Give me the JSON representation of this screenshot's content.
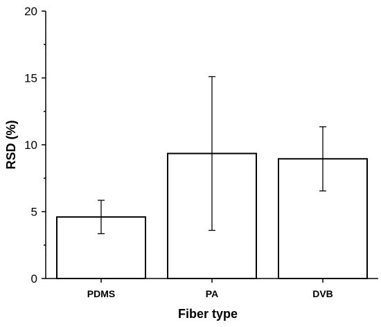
{
  "chart_data": {
    "type": "bar",
    "title": "",
    "xlabel": "Fiber type",
    "ylabel": "RSD (%)",
    "categories": [
      "PDMS",
      "PA",
      "DVB"
    ],
    "values": [
      4.6,
      9.35,
      8.95
    ],
    "error_lower": [
      3.35,
      3.6,
      6.55
    ],
    "error_upper": [
      5.85,
      15.1,
      11.35
    ],
    "ylim": [
      0,
      20
    ],
    "yticks": [
      0,
      5,
      10,
      15,
      20
    ],
    "grid": false,
    "legend": "none",
    "bar_fill": "#ffffff",
    "bar_edge": "#000000"
  }
}
